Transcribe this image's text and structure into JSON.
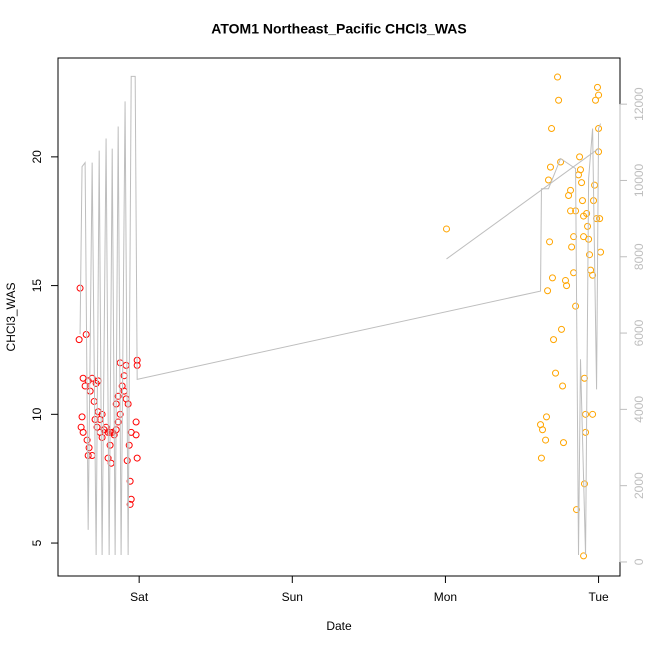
{
  "chart_data": {
    "type": "scatter",
    "title": "ATOM1 Northeast_Pacific CHCl3_WAS",
    "x_label": "Date",
    "y_label": "CHCl3_WAS",
    "xlim": [
      -0.53,
      3.14
    ],
    "ylim": [
      3.72,
      23.84
    ],
    "y2lim": [
      -368,
      13210
    ],
    "xticks": [
      {
        "value": 0,
        "label": "Sat"
      },
      {
        "value": 1,
        "label": "Sun"
      },
      {
        "value": 2,
        "label": "Mon"
      },
      {
        "value": 3,
        "label": "Tue"
      }
    ],
    "yticks": [
      5,
      10,
      15,
      20
    ],
    "y2ticks": [
      0,
      2000,
      4000,
      6000,
      8000,
      10000,
      12000
    ],
    "y2_color": "#bebebe",
    "series": [
      {
        "color": "#ff0000",
        "x": [
          -0.386,
          -0.392,
          -0.346,
          -0.366,
          -0.353,
          -0.333,
          -0.32,
          -0.307,
          -0.294,
          -0.281,
          -0.268,
          -0.373,
          -0.379,
          -0.366,
          -0.34,
          -0.327,
          -0.333,
          -0.307,
          -0.288,
          -0.275,
          -0.255,
          -0.242,
          -0.229,
          -0.216,
          -0.203,
          -0.19,
          -0.176,
          -0.163,
          -0.15,
          -0.137,
          -0.124,
          -0.15,
          -0.137,
          -0.124,
          -0.111,
          -0.098,
          -0.085,
          -0.098,
          -0.085,
          -0.072,
          -0.19,
          -0.203,
          -0.183,
          -0.078,
          -0.059,
          -0.052,
          -0.059,
          -0.065,
          -0.052,
          -0.02,
          -0.02,
          -0.013,
          -0.013,
          -0.013,
          -0.255,
          -0.268,
          -0.242
        ],
        "values": [
          14.9,
          12.9,
          13.1,
          11.4,
          11.1,
          11.3,
          10.9,
          11.4,
          10.5,
          11.2,
          11.3,
          9.9,
          9.5,
          9.3,
          9.0,
          8.7,
          8.4,
          8.4,
          9.8,
          9.5,
          9.3,
          9.1,
          9.4,
          9.5,
          9.3,
          9.3,
          9.3,
          9.2,
          9.4,
          9.7,
          10.0,
          10.4,
          10.7,
          12.0,
          11.1,
          11.5,
          11.9,
          10.9,
          10.6,
          10.4,
          8.8,
          8.3,
          8.1,
          8.2,
          7.4,
          6.7,
          6.5,
          8.8,
          9.3,
          9.7,
          9.2,
          8.3,
          12.1,
          11.9,
          9.8,
          10.1,
          10.0
        ]
      },
      {
        "color": "#ffa500",
        "x": [
          2.007,
          2.621,
          2.634,
          2.654,
          2.627,
          2.66,
          2.667,
          2.68,
          2.699,
          2.706,
          2.719,
          2.693,
          2.732,
          2.739,
          2.752,
          2.686,
          2.673,
          2.765,
          2.771,
          2.758,
          2.784,
          2.791,
          2.804,
          2.817,
          2.817,
          2.824,
          2.837,
          2.837,
          2.85,
          2.85,
          2.856,
          2.869,
          2.876,
          2.882,
          2.889,
          2.895,
          2.902,
          2.902,
          2.908,
          2.908,
          2.915,
          2.915,
          2.902,
          2.922,
          2.928,
          2.935,
          2.941,
          2.948,
          2.961,
          2.967,
          2.974,
          2.98,
          2.993,
          3.0,
          3.0,
          3.007,
          3.013,
          3.0,
          2.987,
          2.961
        ],
        "values": [
          17.2,
          9.6,
          9.4,
          9.0,
          8.3,
          9.9,
          14.8,
          16.7,
          15.3,
          12.9,
          11.6,
          21.1,
          23.1,
          22.2,
          19.8,
          19.6,
          19.1,
          11.1,
          8.9,
          13.3,
          15.2,
          15.0,
          18.5,
          18.7,
          17.9,
          16.5,
          15.5,
          16.9,
          17.9,
          14.2,
          6.3,
          19.3,
          20.0,
          19.5,
          19.0,
          18.3,
          17.7,
          16.9,
          11.4,
          7.3,
          10.0,
          9.3,
          4.5,
          17.8,
          17.3,
          16.8,
          16.2,
          15.6,
          10.0,
          18.3,
          18.9,
          22.2,
          22.7,
          21.1,
          20.2,
          17.6,
          16.3,
          22.4,
          17.6,
          15.4
        ]
      },
      {
        "type": "line",
        "axis": "y2",
        "color": "#bebebe",
        "x": [
          -0.386,
          -0.373,
          -0.353,
          -0.333,
          -0.307,
          -0.281,
          -0.261,
          -0.242,
          -0.216,
          -0.196,
          -0.176,
          -0.157,
          -0.137,
          -0.118,
          -0.092,
          -0.072,
          -0.052,
          -0.026,
          -0.013,
          2.621,
          2.627,
          2.673,
          2.752,
          2.85,
          2.869,
          2.882,
          2.915,
          2.935,
          2.961,
          2.987,
          3.0,
          3.013,
          null,
          2.007,
          3.0
        ],
        "values": [
          5970,
          10362,
          10467,
          842,
          10467,
          184,
          10783,
          184,
          11099,
          184,
          10836,
          184,
          11414,
          184,
          12072,
          184,
          12729,
          12729,
          4787,
          7101,
          9784,
          9784,
          10573,
          10310,
          184,
          5313,
          184,
          10047,
          11362,
          4524,
          11362,
          11493,
          null,
          7943,
          10836
        ]
      }
    ]
  }
}
